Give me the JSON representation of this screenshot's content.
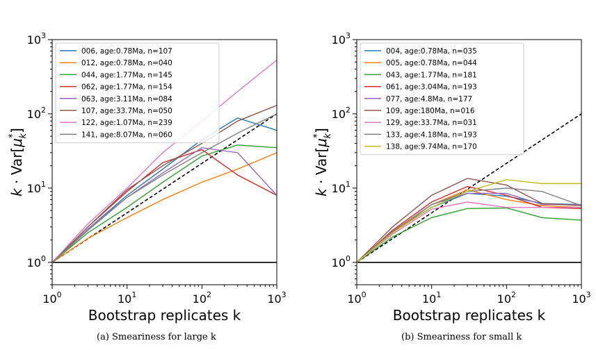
{
  "chart_data": [
    {
      "type": "line",
      "caption": "(a) Smeariness for large k",
      "xlabel": "Bootstrap replicates k",
      "ylabel": "k · Var[μ_k*]",
      "xscale": "log",
      "yscale": "log",
      "xlim": [
        1,
        1000
      ],
      "ylim": [
        0.5,
        1000
      ],
      "x_ticks": [
        1,
        10,
        100,
        1000
      ],
      "x_tick_labels": [
        "10^0",
        "10^1",
        "10^2",
        "10^3"
      ],
      "y_ticks": [
        1,
        10,
        100,
        1000
      ],
      "y_tick_labels": [
        "10^0",
        "10^1",
        "10^2",
        "10^3"
      ],
      "legend_location": "top-left",
      "reference_lines": [
        {
          "style": "dashed",
          "color": "#000000",
          "x": [
            1,
            1000
          ],
          "y": [
            1,
            100
          ]
        },
        {
          "style": "solid",
          "color": "#000000",
          "x": [
            1,
            1000
          ],
          "y": [
            1,
            1
          ]
        }
      ],
      "series": [
        {
          "name": "006, age:0.78Ma, n=107",
          "color": "#1f77b4",
          "x": [
            1,
            3,
            10,
            30,
            100,
            300,
            1000
          ],
          "y": [
            1,
            2.8,
            8,
            18,
            45,
            88,
            60
          ]
        },
        {
          "name": "012, age:0.78Ma, n=040",
          "color": "#ff7f0e",
          "x": [
            1,
            3,
            10,
            30,
            100,
            300,
            1000
          ],
          "y": [
            1,
            2.1,
            4,
            7,
            12,
            18,
            30
          ]
        },
        {
          "name": "044, age:1.77Ma, n=145",
          "color": "#2ca02c",
          "x": [
            1,
            3,
            10,
            30,
            100,
            300,
            1000
          ],
          "y": [
            1,
            2.5,
            5.5,
            12,
            27,
            38,
            35
          ]
        },
        {
          "name": "062, age:1.77Ma, n=154",
          "color": "#d62728",
          "x": [
            1,
            3,
            10,
            30,
            100,
            300,
            1000
          ],
          "y": [
            1,
            3,
            9,
            22,
            33,
            15,
            8
          ]
        },
        {
          "name": "063, age:3.11Ma, n=084",
          "color": "#9467bd",
          "x": [
            1,
            3,
            10,
            30,
            100,
            300,
            1000
          ],
          "y": [
            1,
            2.8,
            7.5,
            16,
            35,
            30,
            8
          ]
        },
        {
          "name": "107, age:33.7Ma, n=050",
          "color": "#8c564b",
          "x": [
            1,
            3,
            10,
            30,
            100,
            300,
            1000
          ],
          "y": [
            1,
            3,
            9.5,
            20,
            40,
            80,
            130
          ]
        },
        {
          "name": "122, age:1.07Ma, n=239",
          "color": "#e377c2",
          "x": [
            1,
            3,
            10,
            30,
            100,
            300,
            1000
          ],
          "y": [
            1,
            3.3,
            10,
            30,
            80,
            200,
            530
          ]
        },
        {
          "name": "141, age:8.07Ma, n=060",
          "color": "#7f7f7f",
          "x": [
            1,
            3,
            10,
            30,
            100,
            300,
            1000
          ],
          "y": [
            1,
            2.7,
            7.5,
            15,
            30,
            55,
            100
          ]
        }
      ]
    },
    {
      "type": "line",
      "caption": "(b) Smeariness for small k",
      "xlabel": "Bootstrap replicates k",
      "ylabel": "k · Var[μ_k*]",
      "xscale": "log",
      "yscale": "log",
      "xlim": [
        1,
        1000
      ],
      "ylim": [
        0.5,
        1000
      ],
      "x_ticks": [
        1,
        10,
        100,
        1000
      ],
      "x_tick_labels": [
        "10^0",
        "10^1",
        "10^2",
        "10^3"
      ],
      "y_ticks": [
        1,
        10,
        100,
        1000
      ],
      "y_tick_labels": [
        "10^0",
        "10^1",
        "10^2",
        "10^3"
      ],
      "legend_location": "top-left",
      "reference_lines": [
        {
          "style": "dashed",
          "color": "#000000",
          "x": [
            1,
            1000
          ],
          "y": [
            1,
            100
          ]
        },
        {
          "style": "solid",
          "color": "#000000",
          "x": [
            1,
            1000
          ],
          "y": [
            1,
            1
          ]
        }
      ],
      "series": [
        {
          "name": "004, age:0.78Ma, n=035",
          "color": "#1f77b4",
          "x": [
            1,
            3,
            10,
            30,
            100,
            300,
            1000
          ],
          "y": [
            1,
            2.6,
            5.5,
            8.5,
            7.8,
            6.2,
            6
          ]
        },
        {
          "name": "005, age:0.78Ma, n=044",
          "color": "#ff7f0e",
          "x": [
            1,
            3,
            10,
            30,
            100,
            300,
            1000
          ],
          "y": [
            1,
            2.5,
            6,
            9.5,
            7,
            5.8,
            5.5
          ]
        },
        {
          "name": "043, age:1.77Ma, n=181",
          "color": "#2ca02c",
          "x": [
            1,
            3,
            10,
            30,
            100,
            300,
            1000
          ],
          "y": [
            1,
            2.2,
            4,
            5.3,
            5.4,
            4,
            3.7
          ]
        },
        {
          "name": "061, age:3.04Ma, n=193",
          "color": "#d62728",
          "x": [
            1,
            3,
            10,
            30,
            100,
            300,
            1000
          ],
          "y": [
            1,
            2.7,
            6.5,
            10.5,
            8,
            5.5,
            5.3
          ]
        },
        {
          "name": "077, age:4.8Ma, n=177",
          "color": "#9467bd",
          "x": [
            1,
            3,
            10,
            30,
            100,
            300,
            1000
          ],
          "y": [
            1,
            2.6,
            6,
            8.5,
            8.5,
            6,
            6
          ]
        },
        {
          "name": "109, age:180Ma, n=016",
          "color": "#8c564b",
          "x": [
            1,
            3,
            10,
            30,
            100,
            300,
            1000
          ],
          "y": [
            1,
            3,
            8,
            13.5,
            11,
            6.2,
            5.8
          ]
        },
        {
          "name": "129, age:33.7Ma, n=031",
          "color": "#e377c2",
          "x": [
            1,
            3,
            10,
            30,
            100,
            300,
            1000
          ],
          "y": [
            1,
            2.4,
            5.2,
            6.5,
            5.5,
            5.5,
            5.5
          ]
        },
        {
          "name": "133, age:4.18Ma, n=193",
          "color": "#7f7f7f",
          "x": [
            1,
            3,
            10,
            30,
            100,
            300,
            1000
          ],
          "y": [
            1,
            2.6,
            6,
            9,
            10,
            9,
            5.8
          ]
        },
        {
          "name": "138, age:9.74Ma, n=170",
          "color": "#bcbd22",
          "x": [
            1,
            3,
            10,
            30,
            100,
            300,
            1000
          ],
          "y": [
            1,
            2.5,
            5.5,
            9,
            13,
            11.5,
            11.5
          ]
        }
      ]
    }
  ]
}
